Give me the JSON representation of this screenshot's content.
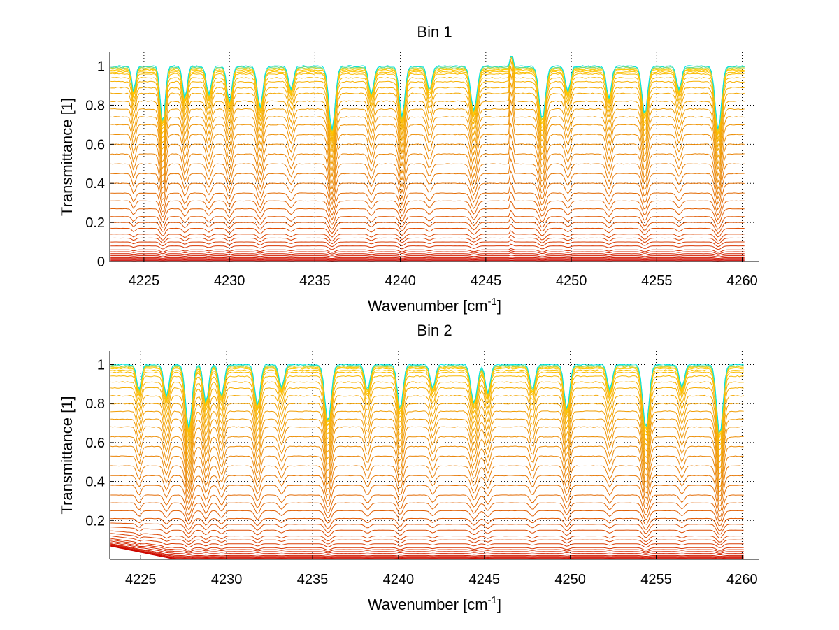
{
  "chart_data": [
    {
      "type": "line",
      "title": "Bin 1",
      "xlabel": "Wavenumber [cm",
      "xlabel_sup": "-1",
      "xlabel_tail": "]",
      "ylabel": "Transmittance [1]",
      "xlim": [
        4223,
        4261
      ],
      "ylim": [
        0,
        1.07
      ],
      "xticks": [
        4225,
        4230,
        4235,
        4240,
        4245,
        4250,
        4255,
        4260
      ],
      "xtick_labels": [
        "4225",
        "4230",
        "4235",
        "4240",
        "4245",
        "4250",
        "4255",
        "4260"
      ],
      "yticks": [
        0,
        0.2,
        0.4,
        0.6,
        0.8,
        1
      ],
      "ytick_labels": [
        "0",
        "0.2",
        "0.4",
        "0.6",
        "0.8",
        "1"
      ],
      "grid": true,
      "series_count": 40,
      "baseline_levels": [
        0.0,
        0.005,
        0.01,
        0.015,
        0.02,
        0.03,
        0.04,
        0.05,
        0.06,
        0.08,
        0.1,
        0.12,
        0.14,
        0.17,
        0.2,
        0.23,
        0.27,
        0.31,
        0.35,
        0.4,
        0.45,
        0.5,
        0.55,
        0.6,
        0.65,
        0.7,
        0.74,
        0.78,
        0.82,
        0.86,
        0.89,
        0.92,
        0.94,
        0.96,
        0.97,
        0.98,
        0.985,
        0.99,
        0.995,
        1.0
      ],
      "absorption_lines": [
        {
          "x": 4224.4,
          "depth": 0.2,
          "width": 0.15
        },
        {
          "x": 4226.1,
          "depth": 0.45,
          "width": 0.2
        },
        {
          "x": 4227.4,
          "depth": 0.25,
          "width": 0.18
        },
        {
          "x": 4228.8,
          "depth": 0.22,
          "width": 0.2
        },
        {
          "x": 4230.0,
          "depth": 0.28,
          "width": 0.2
        },
        {
          "x": 4231.8,
          "depth": 0.32,
          "width": 0.22
        },
        {
          "x": 4233.6,
          "depth": 0.18,
          "width": 0.2
        },
        {
          "x": 4236.0,
          "depth": 0.5,
          "width": 0.25
        },
        {
          "x": 4238.3,
          "depth": 0.22,
          "width": 0.2
        },
        {
          "x": 4240.1,
          "depth": 0.4,
          "width": 0.22
        },
        {
          "x": 4241.7,
          "depth": 0.18,
          "width": 0.2
        },
        {
          "x": 4244.3,
          "depth": 0.35,
          "width": 0.25
        },
        {
          "x": 4246.5,
          "depth": -0.35,
          "width": 0.08
        },
        {
          "x": 4248.3,
          "depth": 0.42,
          "width": 0.25
        },
        {
          "x": 4249.8,
          "depth": 0.2,
          "width": 0.2
        },
        {
          "x": 4252.2,
          "depth": 0.25,
          "width": 0.2
        },
        {
          "x": 4254.3,
          "depth": 0.38,
          "width": 0.22
        },
        {
          "x": 4256.3,
          "depth": 0.18,
          "width": 0.2
        },
        {
          "x": 4258.6,
          "depth": 0.5,
          "width": 0.25
        }
      ]
    },
    {
      "type": "line",
      "title": "Bin 2",
      "xlabel": "Wavenumber [cm",
      "xlabel_sup": "-1",
      "xlabel_tail": "]",
      "ylabel": "Transmittance [1]",
      "xlim": [
        4223.2,
        4261
      ],
      "ylim": [
        0,
        1.07
      ],
      "xticks": [
        4225,
        4230,
        4235,
        4240,
        4245,
        4250,
        4255,
        4260
      ],
      "xtick_labels": [
        "4225",
        "4230",
        "4235",
        "4240",
        "4245",
        "4250",
        "4255",
        "4260"
      ],
      "yticks": [
        0.2,
        0.4,
        0.6,
        0.8,
        1
      ],
      "ytick_labels": [
        "0.2",
        "0.4",
        "0.6",
        "0.8",
        "1"
      ],
      "grid": true,
      "series_count": 40,
      "baseline_levels": [
        0.0,
        0.003,
        0.006,
        0.01,
        0.015,
        0.02,
        0.03,
        0.04,
        0.05,
        0.06,
        0.08,
        0.1,
        0.12,
        0.15,
        0.18,
        0.21,
        0.25,
        0.29,
        0.33,
        0.38,
        0.43,
        0.48,
        0.53,
        0.58,
        0.63,
        0.68,
        0.72,
        0.76,
        0.8,
        0.84,
        0.88,
        0.91,
        0.94,
        0.96,
        0.97,
        0.98,
        0.985,
        0.99,
        0.995,
        1.0
      ],
      "absorption_lines": [
        {
          "x": 4224.9,
          "depth": 0.2,
          "width": 0.18
        },
        {
          "x": 4226.5,
          "depth": 0.25,
          "width": 0.2
        },
        {
          "x": 4227.8,
          "depth": 0.5,
          "width": 0.25
        },
        {
          "x": 4228.8,
          "depth": 0.3,
          "width": 0.2
        },
        {
          "x": 4229.7,
          "depth": 0.25,
          "width": 0.2
        },
        {
          "x": 4231.8,
          "depth": 0.32,
          "width": 0.22
        },
        {
          "x": 4233.2,
          "depth": 0.18,
          "width": 0.2
        },
        {
          "x": 4235.9,
          "depth": 0.45,
          "width": 0.25
        },
        {
          "x": 4238.2,
          "depth": 0.2,
          "width": 0.2
        },
        {
          "x": 4240.1,
          "depth": 0.35,
          "width": 0.22
        },
        {
          "x": 4242.0,
          "depth": 0.18,
          "width": 0.2
        },
        {
          "x": 4244.4,
          "depth": 0.3,
          "width": 0.25
        },
        {
          "x": 4245.2,
          "depth": 0.22,
          "width": 0.2
        },
        {
          "x": 4247.8,
          "depth": 0.2,
          "width": 0.2
        },
        {
          "x": 4249.8,
          "depth": 0.35,
          "width": 0.22
        },
        {
          "x": 4252.3,
          "depth": 0.2,
          "width": 0.2
        },
        {
          "x": 4254.4,
          "depth": 0.5,
          "width": 0.25
        },
        {
          "x": 4256.5,
          "depth": 0.18,
          "width": 0.2
        },
        {
          "x": 4258.7,
          "depth": 0.55,
          "width": 0.25
        }
      ]
    }
  ],
  "colors": {
    "low": "#cc0000",
    "mid": "#e8820a",
    "high": "#ffcc00",
    "top": "#00e5e5",
    "axis": "#000000",
    "background": "#ffffff"
  }
}
